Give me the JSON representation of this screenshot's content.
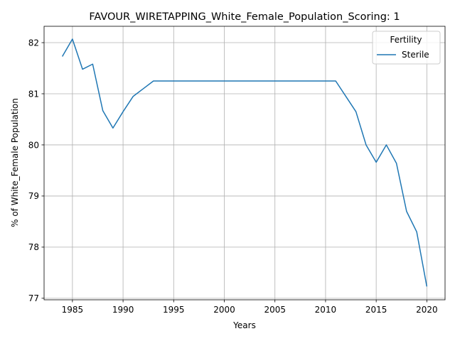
{
  "chart_data": {
    "type": "line",
    "title": "FAVOUR_WIRETAPPING_White_Female_Population_Scoring: 1",
    "xlabel": "Years",
    "ylabel": "% of White_Female Population",
    "xlim": [
      1982.2,
      2021.8
    ],
    "ylim": [
      76.97,
      82.32
    ],
    "xticks": [
      1985,
      1990,
      1995,
      2000,
      2005,
      2010,
      2015,
      2020
    ],
    "yticks": [
      77,
      78,
      79,
      80,
      81,
      82
    ],
    "grid": true,
    "legend": {
      "title": "Fertility",
      "placement": "top-right"
    },
    "series": [
      {
        "name": "Sterile",
        "color": "#1f77b4",
        "x": [
          1984,
          1985,
          1986,
          1987,
          1988,
          1989,
          1990,
          1991,
          1992,
          1993,
          1994,
          1995,
          1996,
          1997,
          1998,
          1999,
          2000,
          2001,
          2002,
          2003,
          2004,
          2005,
          2006,
          2007,
          2008,
          2009,
          2010,
          2011,
          2012,
          2013,
          2014,
          2015,
          2016,
          2017,
          2018,
          2019,
          2020
        ],
        "values": [
          81.73,
          82.07,
          81.48,
          81.58,
          80.67,
          80.33,
          80.65,
          80.95,
          81.1,
          81.25,
          81.25,
          81.25,
          81.25,
          81.25,
          81.25,
          81.25,
          81.25,
          81.25,
          81.25,
          81.25,
          81.25,
          81.25,
          81.25,
          81.25,
          81.25,
          81.25,
          81.25,
          81.25,
          80.95,
          80.65,
          80.0,
          79.66,
          80.0,
          79.64,
          78.7,
          78.3,
          77.23
        ]
      }
    ]
  }
}
